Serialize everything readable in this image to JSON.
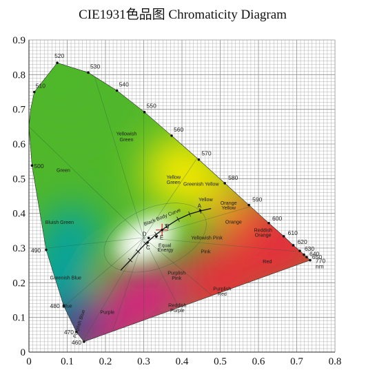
{
  "chart_data": {
    "type": "scatter",
    "title": "CIE1931色品图 Chromaticity Diagram",
    "xlabel": "",
    "ylabel": "",
    "xlim": [
      0,
      0.8
    ],
    "ylim": [
      0,
      0.9
    ],
    "x_ticks": [
      "0",
      "0.1",
      "0.2",
      "0.3",
      "0.4",
      "0.5",
      "0.6",
      "0.7",
      "0.8"
    ],
    "y_ticks": [
      "0",
      "0.1",
      "0.2",
      "0.3",
      "0.4",
      "0.5",
      "0.6",
      "0.7",
      "0.8",
      "0.9"
    ],
    "grid": true,
    "unit_label": "nm",
    "spectral_locus": [
      {
        "label": "460",
        "x": 0.144,
        "y": 0.03
      },
      {
        "label": "470",
        "x": 0.124,
        "y": 0.058
      },
      {
        "label": "480",
        "x": 0.091,
        "y": 0.133
      },
      {
        "label": "490",
        "x": 0.045,
        "y": 0.295
      },
      {
        "label": "500",
        "x": 0.008,
        "y": 0.538
      },
      {
        "label": "510",
        "x": 0.014,
        "y": 0.75
      },
      {
        "label": "520",
        "x": 0.074,
        "y": 0.834
      },
      {
        "label": "530",
        "x": 0.155,
        "y": 0.806
      },
      {
        "label": "540",
        "x": 0.23,
        "y": 0.754
      },
      {
        "label": "550",
        "x": 0.302,
        "y": 0.692
      },
      {
        "label": "560",
        "x": 0.373,
        "y": 0.624
      },
      {
        "label": "570",
        "x": 0.444,
        "y": 0.555
      },
      {
        "label": "580",
        "x": 0.512,
        "y": 0.487
      },
      {
        "label": "590",
        "x": 0.575,
        "y": 0.424
      },
      {
        "label": "600",
        "x": 0.627,
        "y": 0.372
      },
      {
        "label": "610",
        "x": 0.666,
        "y": 0.334
      },
      {
        "label": "620",
        "x": 0.691,
        "y": 0.308
      },
      {
        "label": "630",
        "x": 0.708,
        "y": 0.292
      },
      {
        "label": "640",
        "x": 0.719,
        "y": 0.281
      },
      {
        "label": "650",
        "x": 0.726,
        "y": 0.274
      },
      {
        "label": "770",
        "x": 0.735,
        "y": 0.265
      }
    ],
    "regions": [
      {
        "label": "Green",
        "x": 0.09,
        "y": 0.52
      },
      {
        "label": "Yellowish",
        "x": 0.255,
        "y": 0.625
      },
      {
        "label": "Green",
        "x": 0.255,
        "y": 0.608
      },
      {
        "label": "Yellow",
        "x": 0.378,
        "y": 0.5
      },
      {
        "label": "Green",
        "x": 0.378,
        "y": 0.485
      },
      {
        "label": "Greenish Yellow",
        "x": 0.45,
        "y": 0.48
      },
      {
        "label": "Yellow",
        "x": 0.462,
        "y": 0.435
      },
      {
        "label": "Orange",
        "x": 0.522,
        "y": 0.425
      },
      {
        "label": "Yellow",
        "x": 0.522,
        "y": 0.411
      },
      {
        "label": "Orange",
        "x": 0.535,
        "y": 0.371
      },
      {
        "label": "Reddish",
        "x": 0.612,
        "y": 0.347
      },
      {
        "label": "Orange",
        "x": 0.612,
        "y": 0.333
      },
      {
        "label": "Bluish Green",
        "x": 0.08,
        "y": 0.37
      },
      {
        "label": "Yellowish Pink",
        "x": 0.465,
        "y": 0.325
      },
      {
        "label": "Pink",
        "x": 0.462,
        "y": 0.285
      },
      {
        "label": "Red",
        "x": 0.623,
        "y": 0.256
      },
      {
        "label": "Equal",
        "x": 0.355,
        "y": 0.303
      },
      {
        "label": "Energy",
        "x": 0.357,
        "y": 0.29
      },
      {
        "label": "Purplish",
        "x": 0.386,
        "y": 0.224
      },
      {
        "label": "Pink",
        "x": 0.386,
        "y": 0.209
      },
      {
        "label": "Purplish",
        "x": 0.505,
        "y": 0.178
      },
      {
        "label": "Red",
        "x": 0.505,
        "y": 0.163
      },
      {
        "label": "Greenish Blue",
        "x": 0.096,
        "y": 0.21
      },
      {
        "label": "Reddish",
        "x": 0.388,
        "y": 0.13
      },
      {
        "label": "Purple",
        "x": 0.388,
        "y": 0.115
      },
      {
        "label": "Blue",
        "x": 0.1,
        "y": 0.128
      },
      {
        "label": "Purple",
        "x": 0.205,
        "y": 0.11
      }
    ],
    "rotated_labels": [
      {
        "label": "Purplish Blue",
        "x": 0.135,
        "y": 0.08
      },
      {
        "label": "Black Body Curve",
        "x": 0.35,
        "y": 0.385
      }
    ],
    "black_body_curve": [
      {
        "x": 0.24,
        "y": 0.236
      },
      {
        "x": 0.265,
        "y": 0.265
      },
      {
        "x": 0.285,
        "y": 0.29
      },
      {
        "x": 0.305,
        "y": 0.313
      },
      {
        "x": 0.333,
        "y": 0.34
      },
      {
        "x": 0.36,
        "y": 0.362
      },
      {
        "x": 0.39,
        "y": 0.383
      },
      {
        "x": 0.42,
        "y": 0.398
      },
      {
        "x": 0.448,
        "y": 0.407
      },
      {
        "x": 0.476,
        "y": 0.414
      }
    ],
    "illuminants": [
      {
        "label": "A",
        "x": 0.448,
        "y": 0.408
      },
      {
        "label": "B",
        "x": 0.348,
        "y": 0.352
      },
      {
        "label": "C",
        "x": 0.31,
        "y": 0.316
      },
      {
        "label": "D",
        "x": 0.313,
        "y": 0.329
      },
      {
        "label": "E",
        "x": 0.333,
        "y": 0.333
      }
    ],
    "colors": {
      "green": "#4fb72a",
      "yellow": "#f2e800",
      "orange": "#f28a1e",
      "red": "#e2323a",
      "magenta": "#d6217e",
      "blue": "#25348f",
      "cyan": "#00a0a8",
      "white": "#ffffff",
      "boundary_dots": "#111111",
      "grid": "#8f8f8f"
    }
  }
}
